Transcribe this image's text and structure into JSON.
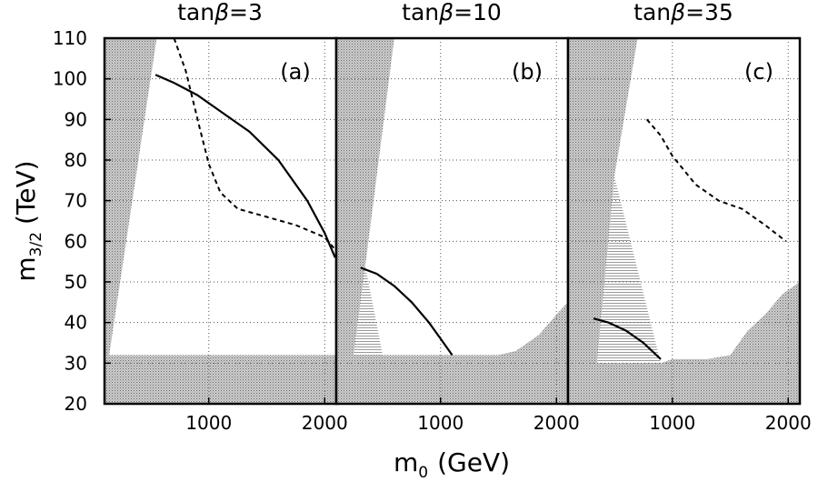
{
  "chart_data": {
    "type": "line",
    "y_axis": {
      "label_main": "m",
      "label_sub": "3/2",
      "label_unit": "(TeV)",
      "ylim": [
        20,
        110
      ],
      "ticks": [
        20,
        30,
        40,
        50,
        60,
        70,
        80,
        90,
        100,
        110
      ]
    },
    "x_axis": {
      "label_main": "m",
      "label_sub": "0",
      "label_unit": "(GeV)",
      "ticks": [
        1000,
        2000
      ]
    },
    "panels": [
      {
        "title_prefix": "tan",
        "title_symbol": "β",
        "title_value": "=3",
        "label": "(a)",
        "xlim": [
          100,
          2100
        ],
        "excluded_regions": [
          {
            "style": "stipple",
            "points": [
              [
                100,
                20
              ],
              [
                100,
                110
              ],
              [
                550,
                110
              ],
              [
                140,
                32
              ],
              [
                2100,
                32
              ],
              [
                2100,
                20
              ]
            ]
          }
        ],
        "allowed_band": null,
        "series": [
          {
            "name": "solid",
            "style": "solid",
            "points": [
              [
                540,
                101
              ],
              [
                700,
                99
              ],
              [
                900,
                96
              ],
              [
                1100,
                92
              ],
              [
                1350,
                87
              ],
              [
                1600,
                80
              ],
              [
                1850,
                70
              ],
              [
                2000,
                62
              ],
              [
                2090,
                56
              ]
            ]
          },
          {
            "name": "dashed",
            "style": "dashed",
            "points": [
              [
                700,
                110
              ],
              [
                800,
                102
              ],
              [
                920,
                88
              ],
              [
                1000,
                79
              ],
              [
                1100,
                72
              ],
              [
                1250,
                68
              ],
              [
                1500,
                66
              ],
              [
                1750,
                64
              ],
              [
                2000,
                61
              ],
              [
                2090,
                58
              ]
            ]
          }
        ]
      },
      {
        "title_prefix": "tan",
        "title_symbol": "β",
        "title_value": "=10",
        "label": "(b)",
        "xlim": [
          100,
          2100
        ],
        "excluded_regions": [
          {
            "style": "stipple",
            "points": [
              [
                100,
                20
              ],
              [
                100,
                110
              ],
              [
                600,
                110
              ],
              [
                350,
                54
              ],
              [
                250,
                32
              ],
              [
                1500,
                32
              ],
              [
                1650,
                33
              ],
              [
                1850,
                37
              ],
              [
                2000,
                42
              ],
              [
                2100,
                45
              ],
              [
                2100,
                20
              ]
            ]
          }
        ],
        "allowed_band": {
          "style": "hatch",
          "points": [
            [
              250,
              32
            ],
            [
              350,
              54
            ],
            [
              500,
              32
            ]
          ]
        },
        "series": [
          {
            "name": "solid",
            "style": "solid",
            "points": [
              [
                310,
                53.5
              ],
              [
                450,
                52
              ],
              [
                600,
                49
              ],
              [
                750,
                45
              ],
              [
                900,
                40
              ],
              [
                1000,
                36
              ],
              [
                1100,
                32
              ]
            ]
          }
        ]
      },
      {
        "title_prefix": "tan",
        "title_symbol": "β",
        "title_value": "=35",
        "label": "(c)",
        "xlim": [
          100,
          2100
        ],
        "excluded_regions": [
          {
            "style": "stipple",
            "points": [
              [
                100,
                20
              ],
              [
                100,
                110
              ],
              [
                700,
                110
              ],
              [
                500,
                76
              ],
              [
                350,
                30
              ],
              [
                900,
                30
              ],
              [
                1000,
                31
              ],
              [
                1300,
                31
              ],
              [
                1500,
                32
              ],
              [
                1650,
                38
              ],
              [
                1800,
                42
              ],
              [
                1950,
                47
              ],
              [
                2100,
                50
              ],
              [
                2100,
                20
              ]
            ]
          }
        ],
        "allowed_band": {
          "style": "hatch",
          "points": [
            [
              350,
              30
            ],
            [
              500,
              76
            ],
            [
              900,
              30
            ]
          ]
        },
        "series": [
          {
            "name": "solid",
            "style": "solid",
            "points": [
              [
                320,
                41
              ],
              [
                450,
                40
              ],
              [
                600,
                38
              ],
              [
                750,
                35
              ],
              [
                900,
                31
              ]
            ]
          },
          {
            "name": "dashed",
            "style": "dashed",
            "points": [
              [
                780,
                90
              ],
              [
                900,
                86
              ],
              [
                1000,
                81
              ],
              [
                1200,
                74
              ],
              [
                1400,
                70
              ],
              [
                1600,
                68
              ],
              [
                1800,
                64
              ],
              [
                1980,
                60
              ]
            ]
          }
        ]
      }
    ]
  }
}
